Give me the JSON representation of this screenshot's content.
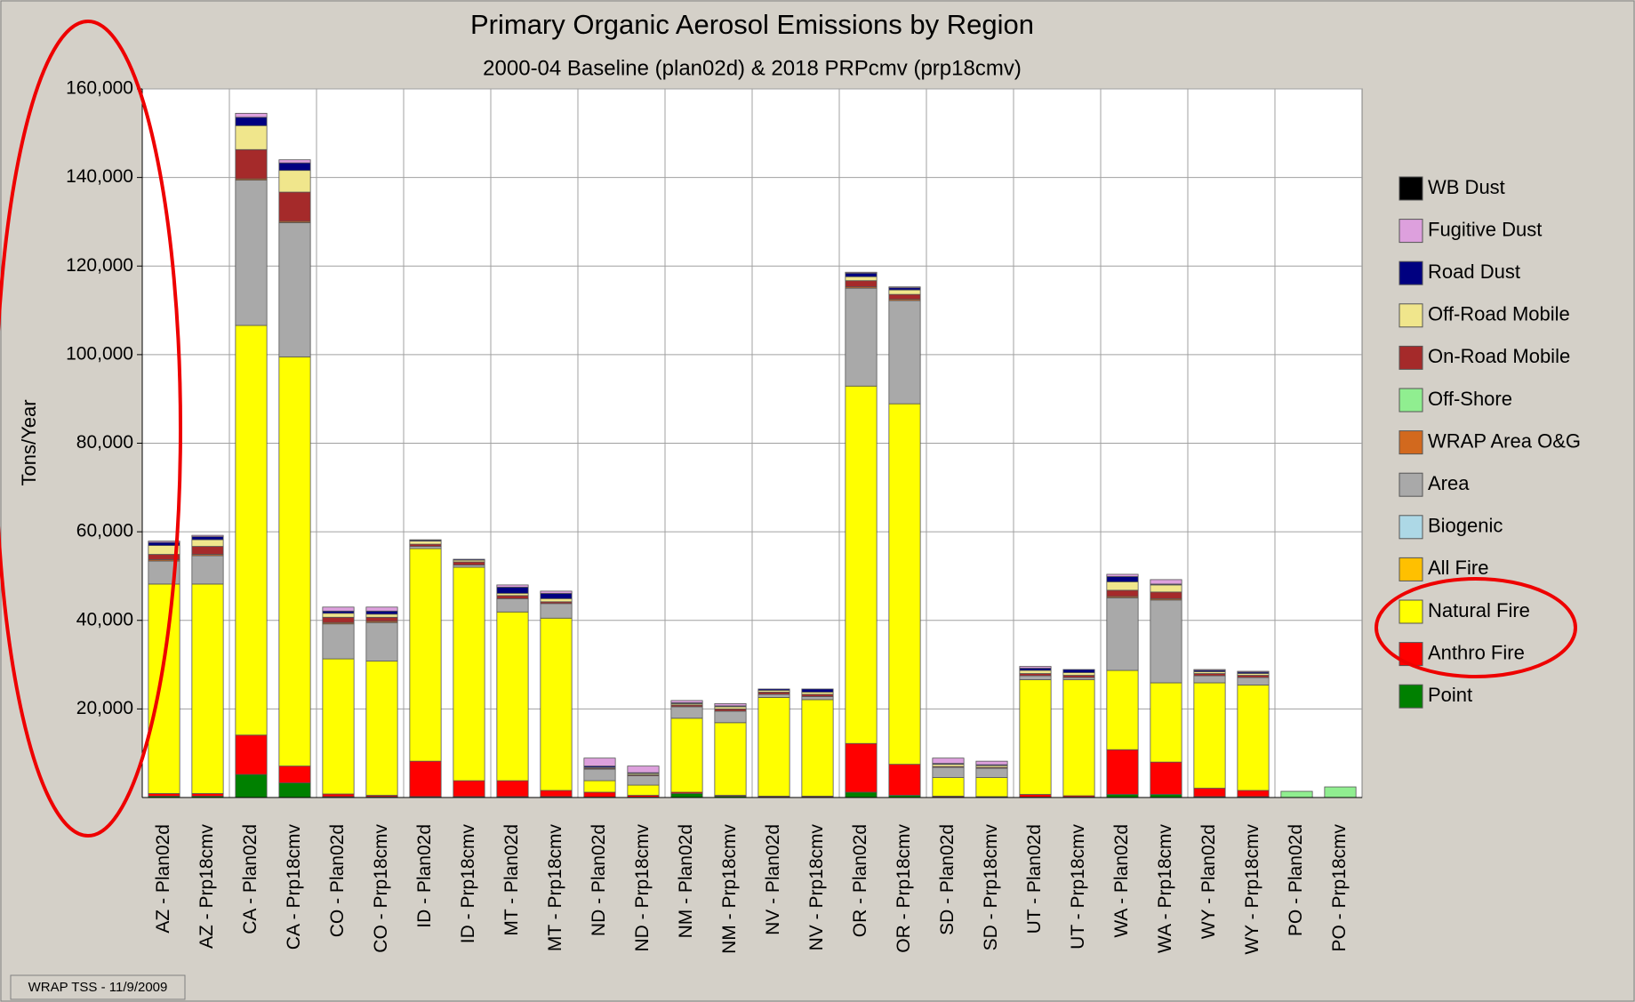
{
  "chart_data": {
    "type": "stacked_bar",
    "title": "Primary Organic Aerosol Emissions by Region",
    "subtitle": "2000-04 Baseline (plan02d) & 2018 PRPcmv (prp18cmv)",
    "y_label": "Tons/Year",
    "footer": "WRAP TSS - 11/9/2009",
    "categories": [
      "AZ - Plan02d",
      "AZ - Prp18cmv",
      "CA - Plan02d",
      "CA - Prp18cmv",
      "CO - Plan02d",
      "CO - Prp18cmv",
      "ID - Plan02d",
      "ID - Prp18cmv",
      "MT - Plan02d",
      "MT - Prp18cmv",
      "ND - Plan02d",
      "ND - Prp18cmv",
      "NM - Plan02d",
      "NM - Prp18cmv",
      "NV - Plan02d",
      "NV - Prp18cmv",
      "OR - Plan02d",
      "OR - Prp18cmv",
      "SD - Plan02d",
      "SD - Prp18cmv",
      "UT - Plan02d",
      "UT - Prp18cmv",
      "WA - Plan02d",
      "WA - Prp18cmv",
      "WY - Plan02d",
      "WY - Prp18cmv",
      "PO - Plan02d",
      "PO - Prp18cmv"
    ],
    "series": [
      {
        "name": "Point",
        "color": "#008000",
        "values": [
          300,
          300,
          5200,
          3300,
          200,
          200,
          200,
          200,
          200,
          200,
          100,
          100,
          900,
          300,
          100,
          100,
          1200,
          500,
          100,
          100,
          100,
          100,
          700,
          700,
          200,
          200,
          0,
          0
        ]
      },
      {
        "name": "Anthro Fire",
        "color": "#ff0000",
        "values": [
          600,
          600,
          8900,
          3800,
          600,
          300,
          8000,
          3600,
          3600,
          1400,
          1100,
          400,
          300,
          200,
          200,
          200,
          11000,
          7000,
          200,
          100,
          600,
          300,
          10100,
          7300,
          1900,
          1400,
          0,
          0
        ]
      },
      {
        "name": "Natural Fire",
        "color": "#ffff00",
        "values": [
          47300,
          47300,
          92500,
          92400,
          30500,
          30300,
          48000,
          48200,
          38100,
          38900,
          2600,
          2300,
          16700,
          16400,
          22300,
          21800,
          80700,
          81400,
          4200,
          4300,
          25900,
          26200,
          17900,
          17900,
          23800,
          23800,
          0,
          0
        ]
      },
      {
        "name": "All Fire",
        "color": "#ffc000",
        "values": [
          0,
          0,
          0,
          0,
          0,
          0,
          0,
          0,
          0,
          0,
          0,
          0,
          0,
          0,
          0,
          0,
          0,
          0,
          0,
          0,
          0,
          0,
          0,
          0,
          0,
          0,
          0,
          0
        ]
      },
      {
        "name": "Biogenic",
        "color": "#add8e6",
        "values": [
          0,
          0,
          0,
          0,
          0,
          0,
          0,
          0,
          0,
          0,
          0,
          0,
          0,
          0,
          0,
          0,
          0,
          0,
          0,
          0,
          0,
          0,
          0,
          0,
          0,
          0,
          0,
          0
        ]
      },
      {
        "name": "Area",
        "color": "#a9a9a9",
        "values": [
          5200,
          6400,
          32800,
          30300,
          7900,
          8700,
          500,
          500,
          3000,
          3300,
          2600,
          2100,
          2600,
          2600,
          700,
          700,
          22100,
          23300,
          2300,
          2100,
          900,
          500,
          16400,
          18700,
          1600,
          1700,
          0,
          0
        ]
      },
      {
        "name": "WRAP Area O&G",
        "color": "#d2691e",
        "values": [
          300,
          300,
          300,
          300,
          300,
          300,
          0,
          0,
          0,
          0,
          0,
          0,
          0,
          0,
          0,
          0,
          300,
          300,
          0,
          0,
          0,
          0,
          300,
          300,
          0,
          0,
          0,
          0
        ]
      },
      {
        "name": "Off-Shore",
        "color": "#90ee90",
        "values": [
          0,
          0,
          0,
          0,
          0,
          0,
          0,
          0,
          0,
          0,
          0,
          0,
          0,
          0,
          0,
          0,
          0,
          0,
          0,
          0,
          0,
          0,
          0,
          0,
          0,
          0,
          1400,
          2400
        ]
      },
      {
        "name": "On-Road Mobile",
        "color": "#a52a2a",
        "values": [
          1200,
          1800,
          6600,
          6600,
          1200,
          900,
          500,
          700,
          700,
          400,
          200,
          200,
          400,
          500,
          500,
          500,
          1400,
          1100,
          200,
          200,
          500,
          500,
          1400,
          1500,
          500,
          500,
          0,
          0
        ]
      },
      {
        "name": "Off-Road Mobile",
        "color": "#f0e68c",
        "values": [
          2000,
          1500,
          5400,
          4900,
          900,
          700,
          700,
          400,
          500,
          700,
          200,
          300,
          300,
          500,
          400,
          500,
          900,
          1000,
          500,
          400,
          700,
          600,
          1900,
          1600,
          400,
          400,
          0,
          0
        ]
      },
      {
        "name": "Road Dust",
        "color": "#000080",
        "values": [
          700,
          700,
          1900,
          1700,
          500,
          700,
          200,
          200,
          1400,
          1200,
          300,
          200,
          200,
          200,
          300,
          700,
          800,
          500,
          200,
          200,
          500,
          700,
          1200,
          200,
          300,
          300,
          0,
          0
        ]
      },
      {
        "name": "Fugitive Dust",
        "color": "#dda0dd",
        "values": [
          300,
          300,
          900,
          700,
          900,
          900,
          100,
          0,
          500,
          500,
          1800,
          1500,
          500,
          500,
          0,
          0,
          200,
          200,
          1200,
          800,
          400,
          0,
          500,
          1000,
          200,
          200,
          0,
          0
        ]
      },
      {
        "name": "WB Dust",
        "color": "#000000",
        "values": [
          0,
          0,
          0,
          0,
          0,
          0,
          0,
          0,
          0,
          0,
          0,
          0,
          0,
          0,
          0,
          0,
          0,
          0,
          0,
          0,
          0,
          0,
          0,
          0,
          0,
          0,
          0,
          0
        ]
      }
    ],
    "ylim": [
      0,
      160000
    ],
    "yticks": [
      {
        "value": 20000,
        "label": "20,000"
      },
      {
        "value": 40000,
        "label": "40,000"
      },
      {
        "value": 60000,
        "label": "60,000"
      },
      {
        "value": 80000,
        "label": "80,000"
      },
      {
        "value": 100000,
        "label": "100,000"
      },
      {
        "value": 120000,
        "label": "120,000"
      },
      {
        "value": 140000,
        "label": "140,000"
      },
      {
        "value": 160000,
        "label": "160,000"
      }
    ],
    "grid": true
  }
}
